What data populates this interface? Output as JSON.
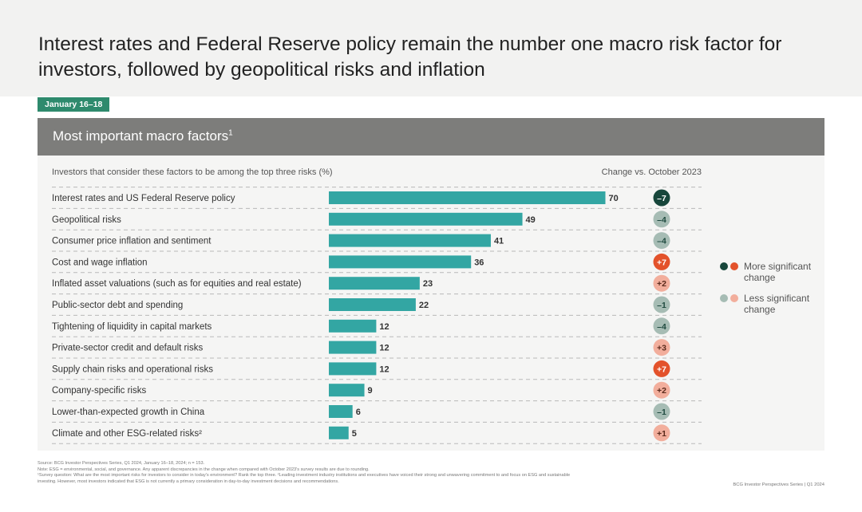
{
  "header": {
    "title": "Interest rates and Federal Reserve policy remain the number one macro risk factor for investors, followed by geopolitical risks and inflation"
  },
  "date_badge": "January 16–18",
  "panel": {
    "title": "Most important macro factors",
    "title_sup": "1"
  },
  "chart_data": {
    "type": "bar",
    "orientation": "horizontal",
    "subtitle": "Investors that consider these factors to be among the top three risks (%)",
    "change_header": "Change vs. October 2023",
    "categories": [
      "Interest rates and US Federal Reserve policy",
      "Geopolitical risks",
      "Consumer price inflation and sentiment",
      "Cost and wage inflation",
      "Inflated asset valuations (such as for equities and real estate)",
      "Public-sector debt and spending",
      "Tightening of liquidity in capital markets",
      "Private-sector credit and default risks",
      "Supply chain risks and operational risks",
      "Company-specific risks",
      "Lower-than-expected growth in China",
      "Climate and other ESG-related risks²"
    ],
    "values": [
      70,
      49,
      41,
      36,
      23,
      22,
      12,
      12,
      12,
      9,
      6,
      5
    ],
    "xlim": [
      0,
      100
    ],
    "change": [
      "–7",
      "–4",
      "–4",
      "+7",
      "+2",
      "–1",
      "–4",
      "+3",
      "+7",
      "+2",
      "–1",
      "+1"
    ],
    "change_category": [
      "dark-green",
      "light-green",
      "light-green",
      "dark-orange",
      "light-orange",
      "light-green",
      "light-green",
      "light-orange",
      "dark-orange",
      "light-orange",
      "light-green",
      "light-orange"
    ],
    "bar_color": "#33a6a3"
  },
  "legend": {
    "more": "More significant change",
    "less": "Less significant change"
  },
  "colors": {
    "dark-green": "#17463b",
    "light-green": "#a6bcb4",
    "dark-orange": "#e3522b",
    "light-orange": "#f2ae9c"
  },
  "footnotes": [
    "Source: BCG Investor Perspectives Series, Q1 2024, January 16–18, 2024; n = 153.",
    "Note: ESG = environmental, social, and governance. Any apparent discrepancies in the change when compared with October 2023's survey results are due to rounding.",
    "¹Survey question: What are the most important risks for investors to consider in today's environment? Rank the top three. ²Leading investment industry institutions and executives have voiced their strong and unwavering commitment to and focus on ESG and sustainable",
    "investing. However, most investors indicated that ESG is not currently a primary consideration in day-to-day investment decisions and recommendations."
  ],
  "footer_right": "BCG Investor Perspectives Series | Q1 2024"
}
